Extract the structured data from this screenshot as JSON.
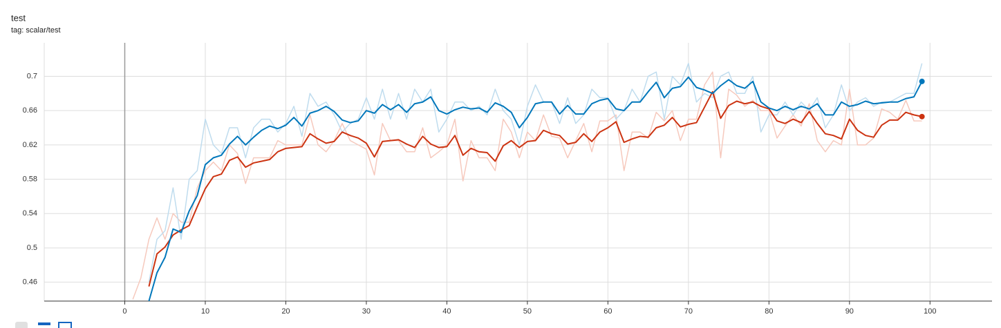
{
  "chart_data": {
    "type": "line",
    "title": "test",
    "subtitle": "tag: scalar/test",
    "x": [
      1,
      2,
      3,
      4,
      5,
      6,
      7,
      8,
      9,
      10,
      11,
      12,
      13,
      14,
      15,
      16,
      17,
      18,
      19,
      20,
      21,
      22,
      23,
      24,
      25,
      26,
      27,
      28,
      29,
      30,
      31,
      32,
      33,
      34,
      35,
      36,
      37,
      38,
      39,
      40,
      41,
      42,
      43,
      44,
      45,
      46,
      47,
      48,
      49,
      50,
      51,
      52,
      53,
      54,
      55,
      56,
      57,
      58,
      59,
      60,
      61,
      62,
      63,
      64,
      65,
      66,
      67,
      68,
      69,
      70,
      71,
      72,
      73,
      74,
      75,
      76,
      77,
      78,
      79,
      80,
      81,
      82,
      83,
      84,
      85,
      86,
      87,
      88,
      89,
      90,
      91,
      92,
      93,
      94,
      95,
      96,
      97,
      98,
      99
    ],
    "xlim": [
      -10,
      107.7
    ],
    "xticks": [
      0,
      10,
      20,
      30,
      40,
      50,
      60,
      70,
      80,
      90,
      100
    ],
    "ylim": [
      0.438,
      0.739
    ],
    "yticks": [
      0.46,
      0.5,
      0.54,
      0.58,
      0.62,
      0.66,
      0.7
    ],
    "grid": true,
    "series": [
      {
        "color": "#f6c9bd",
        "end_marker": false,
        "values": [
          0.44,
          0.465,
          0.51,
          0.535,
          0.51,
          0.54,
          0.53,
          0.53,
          0.57,
          0.59,
          0.6,
          0.59,
          0.62,
          0.61,
          0.575,
          0.605,
          0.605,
          0.605,
          0.625,
          0.62,
          0.62,
          0.62,
          0.655,
          0.62,
          0.612,
          0.625,
          0.645,
          0.625,
          0.62,
          0.615,
          0.585,
          0.645,
          0.625,
          0.625,
          0.612,
          0.612,
          0.64,
          0.605,
          0.612,
          0.62,
          0.65,
          0.578,
          0.625,
          0.605,
          0.605,
          0.59,
          0.65,
          0.635,
          0.605,
          0.635,
          0.625,
          0.655,
          0.63,
          0.628,
          0.605,
          0.625,
          0.645,
          0.612,
          0.648,
          0.648,
          0.655,
          0.59,
          0.635,
          0.635,
          0.628,
          0.658,
          0.648,
          0.66,
          0.625,
          0.65,
          0.65,
          0.69,
          0.705,
          0.605,
          0.685,
          0.678,
          0.665,
          0.672,
          0.66,
          0.66,
          0.628,
          0.642,
          0.655,
          0.642,
          0.668,
          0.625,
          0.612,
          0.625,
          0.62,
          0.685,
          0.62,
          0.62,
          0.628,
          0.662,
          0.658,
          0.65,
          0.672,
          0.648,
          0.648
        ]
      },
      {
        "color": "#bfdcee",
        "end_marker": false,
        "values": [
          null,
          null,
          0.46,
          0.51,
          0.52,
          0.57,
          0.51,
          0.58,
          0.59,
          0.65,
          0.62,
          0.61,
          0.64,
          0.64,
          0.605,
          0.64,
          0.65,
          0.65,
          0.635,
          0.645,
          0.665,
          0.63,
          0.68,
          0.665,
          0.67,
          0.655,
          0.635,
          0.645,
          0.65,
          0.675,
          0.65,
          0.685,
          0.65,
          0.68,
          0.65,
          0.685,
          0.67,
          0.685,
          0.635,
          0.65,
          0.67,
          0.67,
          0.66,
          0.665,
          0.655,
          0.685,
          0.66,
          0.65,
          0.62,
          0.665,
          0.69,
          0.67,
          0.67,
          0.645,
          0.675,
          0.645,
          0.655,
          0.685,
          0.675,
          0.675,
          0.65,
          0.66,
          0.685,
          0.67,
          0.7,
          0.705,
          0.65,
          0.7,
          0.69,
          0.715,
          0.67,
          0.68,
          0.675,
          0.7,
          0.705,
          0.68,
          0.68,
          0.7,
          0.635,
          0.655,
          0.655,
          0.67,
          0.655,
          0.67,
          0.66,
          0.675,
          0.64,
          0.655,
          0.69,
          0.66,
          0.67,
          0.675,
          0.665,
          0.67,
          0.67,
          0.675,
          0.68,
          0.68,
          0.715
        ]
      },
      {
        "color": "#cc3311",
        "end_marker": true,
        "values": [
          null,
          null,
          0.455,
          0.493,
          0.501,
          0.515,
          0.521,
          0.526,
          0.548,
          0.569,
          0.583,
          0.586,
          0.602,
          0.606,
          0.594,
          0.599,
          0.601,
          0.603,
          0.612,
          0.616,
          0.617,
          0.618,
          0.633,
          0.627,
          0.622,
          0.624,
          0.635,
          0.631,
          0.628,
          0.622,
          0.606,
          0.624,
          0.625,
          0.626,
          0.621,
          0.617,
          0.63,
          0.621,
          0.617,
          0.618,
          0.631,
          0.608,
          0.616,
          0.612,
          0.611,
          0.601,
          0.619,
          0.625,
          0.617,
          0.624,
          0.625,
          0.637,
          0.633,
          0.631,
          0.621,
          0.623,
          0.633,
          0.624,
          0.635,
          0.64,
          0.647,
          0.623,
          0.627,
          0.63,
          0.629,
          0.64,
          0.643,
          0.652,
          0.641,
          0.644,
          0.646,
          0.664,
          0.682,
          0.651,
          0.666,
          0.671,
          0.668,
          0.67,
          0.665,
          0.662,
          0.648,
          0.645,
          0.65,
          0.646,
          0.659,
          0.645,
          0.633,
          0.631,
          0.627,
          0.65,
          0.637,
          0.631,
          0.629,
          0.643,
          0.649,
          0.649,
          0.658,
          0.655,
          0.653
        ]
      },
      {
        "color": "#0077bb",
        "end_marker": true,
        "values": [
          null,
          null,
          0.438,
          0.471,
          0.489,
          0.522,
          0.518,
          0.543,
          0.561,
          0.597,
          0.605,
          0.608,
          0.621,
          0.63,
          0.62,
          0.629,
          0.637,
          0.642,
          0.639,
          0.643,
          0.652,
          0.642,
          0.657,
          0.66,
          0.665,
          0.659,
          0.649,
          0.646,
          0.648,
          0.66,
          0.657,
          0.667,
          0.661,
          0.667,
          0.658,
          0.668,
          0.67,
          0.676,
          0.66,
          0.656,
          0.661,
          0.664,
          0.662,
          0.663,
          0.658,
          0.669,
          0.665,
          0.658,
          0.64,
          0.652,
          0.668,
          0.67,
          0.67,
          0.656,
          0.666,
          0.656,
          0.656,
          0.668,
          0.672,
          0.674,
          0.662,
          0.66,
          0.67,
          0.67,
          0.682,
          0.693,
          0.675,
          0.686,
          0.688,
          0.699,
          0.687,
          0.684,
          0.68,
          0.689,
          0.696,
          0.689,
          0.686,
          0.694,
          0.67,
          0.663,
          0.66,
          0.665,
          0.661,
          0.665,
          0.662,
          0.668,
          0.655,
          0.655,
          0.67,
          0.665,
          0.667,
          0.671,
          0.668,
          0.669,
          0.67,
          0.67,
          0.674,
          0.676,
          0.694
        ]
      }
    ]
  }
}
